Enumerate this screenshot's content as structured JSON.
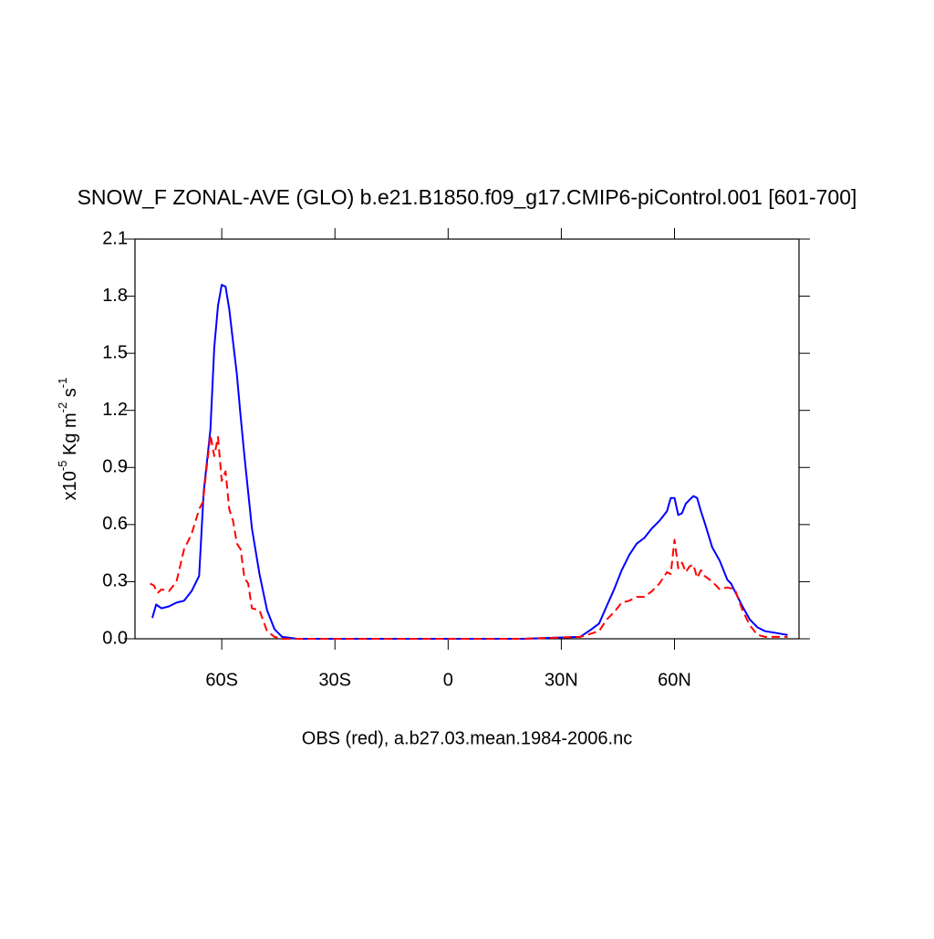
{
  "chart_data": {
    "type": "line",
    "title": "SNOW_F ZONAL-AVE (GLO) b.e21.B1850.f09_g17.CMIP6-piControl.001 [601-700]",
    "xlabel": "OBS (red), a.b27.03.mean.1984-2006.nc",
    "ylabel": [
      "x10",
      "-5",
      " Kg m",
      "-2",
      " s",
      "-1"
    ],
    "xlim": [
      -83,
      93
    ],
    "ylim": [
      0,
      2.1
    ],
    "xticks": [
      {
        "value": -60,
        "label": "60S"
      },
      {
        "value": -30,
        "label": "30S"
      },
      0,
      {
        "value": 30,
        "label": "30N"
      },
      {
        "value": 60,
        "label": "60N"
      }
    ],
    "yticks": [
      {
        "value": 0,
        "label": "0.0"
      },
      0.3,
      0.6,
      0.9,
      1.2,
      1.5,
      1.8,
      2.1
    ],
    "series": [
      {
        "color": "#0000ff",
        "dashed": false,
        "x": [
          -78.4,
          -77.4,
          -76,
          -74,
          -72,
          -70,
          -68,
          -66,
          -64.8,
          -63,
          -62,
          -61,
          -60,
          -59,
          -58,
          -57,
          -56,
          -55,
          -54,
          -53,
          -52,
          -50,
          -48,
          -46,
          -44,
          -40,
          -20,
          0,
          20,
          35,
          38,
          40,
          42,
          44,
          46,
          48,
          50,
          52,
          54,
          56,
          58,
          59,
          60,
          61,
          62,
          63,
          64,
          65,
          66,
          67,
          68,
          70,
          72,
          74,
          75,
          76,
          78,
          80,
          82,
          84,
          87,
          90
        ],
        "values": [
          0.11,
          0.18,
          0.16,
          0.17,
          0.19,
          0.2,
          0.25,
          0.33,
          0.77,
          1.1,
          1.53,
          1.75,
          1.86,
          1.85,
          1.73,
          1.56,
          1.39,
          1.17,
          0.96,
          0.77,
          0.58,
          0.34,
          0.15,
          0.05,
          0.01,
          0,
          0,
          0,
          0,
          0.01,
          0.05,
          0.08,
          0.17,
          0.26,
          0.36,
          0.44,
          0.5,
          0.53,
          0.58,
          0.62,
          0.67,
          0.74,
          0.74,
          0.65,
          0.66,
          0.71,
          0.73,
          0.75,
          0.74,
          0.67,
          0.61,
          0.48,
          0.41,
          0.31,
          0.29,
          0.25,
          0.17,
          0.1,
          0.06,
          0.04,
          0.03,
          0.02
        ]
      },
      {
        "color": "#ff0000",
        "dashed": true,
        "x": [
          -79,
          -78,
          -77,
          -76,
          -74,
          -72,
          -70,
          -68,
          -66,
          -65,
          -64,
          -63,
          -62,
          -61,
          -60,
          -59,
          -58,
          -57,
          -56,
          -55,
          -54,
          -53,
          -52,
          -50,
          -48,
          -46,
          -44,
          -20,
          0,
          20,
          35,
          40,
          42,
          44,
          46,
          48,
          50,
          52,
          54,
          56,
          58,
          59,
          60,
          61,
          62,
          63,
          64,
          65,
          66,
          67,
          68,
          70,
          72,
          74,
          76,
          78,
          80,
          82,
          84,
          90
        ],
        "values": [
          0.29,
          0.28,
          0.24,
          0.26,
          0.25,
          0.3,
          0.47,
          0.55,
          0.68,
          0.72,
          0.9,
          1.07,
          0.96,
          1.06,
          0.83,
          0.88,
          0.68,
          0.62,
          0.5,
          0.47,
          0.32,
          0.29,
          0.16,
          0.15,
          0.04,
          0.01,
          0,
          0,
          0,
          0,
          0.01,
          0.04,
          0.1,
          0.14,
          0.19,
          0.2,
          0.22,
          0.22,
          0.25,
          0.29,
          0.35,
          0.34,
          0.52,
          0.37,
          0.4,
          0.35,
          0.38,
          0.39,
          0.32,
          0.36,
          0.33,
          0.3,
          0.26,
          0.27,
          0.26,
          0.15,
          0.07,
          0.02,
          0.01,
          0.01
        ]
      }
    ]
  }
}
